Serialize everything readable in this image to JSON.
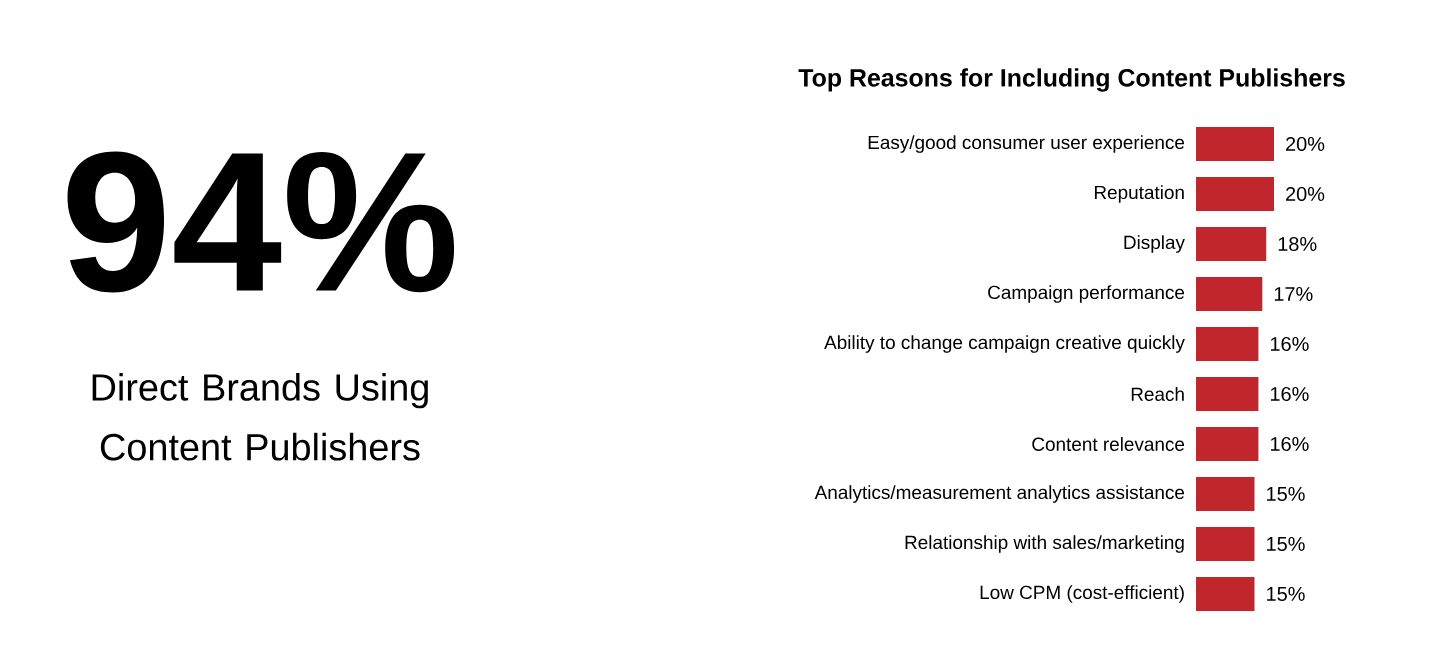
{
  "chart_data": [
    {
      "type": "other",
      "title": "94%",
      "subtitle": "Direct Brands Using Content Publishers"
    },
    {
      "type": "bar",
      "orientation": "horizontal",
      "title": "Top Reasons for Including Content Publishers",
      "categories": [
        "Easy/good consumer user experience",
        "Reputation",
        "Display",
        "Campaign performance",
        "Ability to change campaign creative quickly",
        "Reach",
        "Content relevance",
        "Analytics/measurement analytics assistance",
        "Relationship with sales/marketing",
        "Low CPM (cost-efficient)"
      ],
      "values": [
        20,
        20,
        18,
        17,
        16,
        16,
        16,
        15,
        15,
        15
      ],
      "value_labels": [
        "20%",
        "20%",
        "18%",
        "17%",
        "16%",
        "16%",
        "16%",
        "15%",
        "15%",
        "15%"
      ],
      "color": "#c0262c",
      "tick_labels": "y"
    }
  ]
}
